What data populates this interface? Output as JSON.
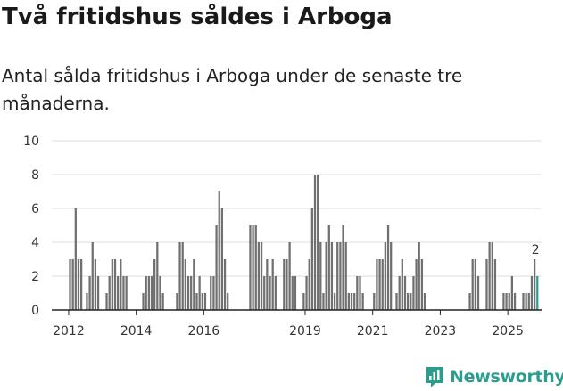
{
  "header": {
    "title": "Två fritidshus såldes i Arboga",
    "subtitle": "Antal sålda fritidshus i Arboga under de senaste tre månaderna."
  },
  "brand": {
    "name": "Newsworthy",
    "color": "#2a9d8f"
  },
  "colors": {
    "bar": "#707070",
    "highlight": "#2a9d8f",
    "grid": "#dddddd",
    "axis": "#222222"
  },
  "chart_data": {
    "type": "bar",
    "title": "Två fritidshus såldes i Arboga",
    "subtitle": "Antal sålda fritidshus i Arboga under de senaste tre månaderna.",
    "xlabel": "",
    "ylabel": "",
    "ylim": [
      0,
      10
    ],
    "yticks": [
      0,
      2,
      4,
      6,
      8,
      10
    ],
    "grid": true,
    "x_domain": [
      "2011-07",
      "2026-01"
    ],
    "xticks": [
      {
        "month": "2012-01",
        "label": "2012"
      },
      {
        "month": "2014-01",
        "label": "2014"
      },
      {
        "month": "2016-01",
        "label": "2016"
      },
      {
        "month": "2019-01",
        "label": "2019"
      },
      {
        "month": "2021-01",
        "label": "2021"
      },
      {
        "month": "2023-01",
        "label": "2023"
      },
      {
        "month": "2025-01",
        "label": "2025"
      }
    ],
    "highlight": {
      "month": "2025-11",
      "value": 2,
      "label": "2"
    },
    "series": [
      {
        "values": [
          {
            "month": "2012-01",
            "value": 3
          },
          {
            "month": "2012-02",
            "value": 3
          },
          {
            "month": "2012-03",
            "value": 6
          },
          {
            "month": "2012-04",
            "value": 3
          },
          {
            "month": "2012-05",
            "value": 3
          },
          {
            "month": "2012-07",
            "value": 1
          },
          {
            "month": "2012-08",
            "value": 2
          },
          {
            "month": "2012-09",
            "value": 4
          },
          {
            "month": "2012-10",
            "value": 3
          },
          {
            "month": "2012-11",
            "value": 2
          },
          {
            "month": "2013-02",
            "value": 1
          },
          {
            "month": "2013-03",
            "value": 2
          },
          {
            "month": "2013-04",
            "value": 3
          },
          {
            "month": "2013-05",
            "value": 3
          },
          {
            "month": "2013-06",
            "value": 2
          },
          {
            "month": "2013-07",
            "value": 3
          },
          {
            "month": "2013-08",
            "value": 2
          },
          {
            "month": "2013-09",
            "value": 2
          },
          {
            "month": "2014-03",
            "value": 1
          },
          {
            "month": "2014-04",
            "value": 2
          },
          {
            "month": "2014-05",
            "value": 2
          },
          {
            "month": "2014-06",
            "value": 2
          },
          {
            "month": "2014-07",
            "value": 3
          },
          {
            "month": "2014-08",
            "value": 4
          },
          {
            "month": "2014-09",
            "value": 2
          },
          {
            "month": "2014-10",
            "value": 1
          },
          {
            "month": "2015-03",
            "value": 1
          },
          {
            "month": "2015-04",
            "value": 4
          },
          {
            "month": "2015-05",
            "value": 4
          },
          {
            "month": "2015-06",
            "value": 3
          },
          {
            "month": "2015-07",
            "value": 2
          },
          {
            "month": "2015-08",
            "value": 2
          },
          {
            "month": "2015-09",
            "value": 3
          },
          {
            "month": "2015-10",
            "value": 1
          },
          {
            "month": "2015-11",
            "value": 2
          },
          {
            "month": "2015-12",
            "value": 1
          },
          {
            "month": "2016-01",
            "value": 1
          },
          {
            "month": "2016-03",
            "value": 2
          },
          {
            "month": "2016-04",
            "value": 2
          },
          {
            "month": "2016-05",
            "value": 5
          },
          {
            "month": "2016-06",
            "value": 7
          },
          {
            "month": "2016-07",
            "value": 6
          },
          {
            "month": "2016-08",
            "value": 3
          },
          {
            "month": "2016-09",
            "value": 1
          },
          {
            "month": "2017-05",
            "value": 5
          },
          {
            "month": "2017-06",
            "value": 5
          },
          {
            "month": "2017-07",
            "value": 5
          },
          {
            "month": "2017-08",
            "value": 4
          },
          {
            "month": "2017-09",
            "value": 4
          },
          {
            "month": "2017-10",
            "value": 2
          },
          {
            "month": "2017-11",
            "value": 3
          },
          {
            "month": "2017-12",
            "value": 2
          },
          {
            "month": "2018-01",
            "value": 3
          },
          {
            "month": "2018-02",
            "value": 2
          },
          {
            "month": "2018-05",
            "value": 3
          },
          {
            "month": "2018-06",
            "value": 3
          },
          {
            "month": "2018-07",
            "value": 4
          },
          {
            "month": "2018-08",
            "value": 2
          },
          {
            "month": "2018-09",
            "value": 2
          },
          {
            "month": "2018-12",
            "value": 1
          },
          {
            "month": "2019-01",
            "value": 2
          },
          {
            "month": "2019-02",
            "value": 3
          },
          {
            "month": "2019-03",
            "value": 6
          },
          {
            "month": "2019-04",
            "value": 8
          },
          {
            "month": "2019-05",
            "value": 8
          },
          {
            "month": "2019-06",
            "value": 4
          },
          {
            "month": "2019-07",
            "value": 1
          },
          {
            "month": "2019-08",
            "value": 4
          },
          {
            "month": "2019-09",
            "value": 5
          },
          {
            "month": "2019-10",
            "value": 4
          },
          {
            "month": "2019-11",
            "value": 1
          },
          {
            "month": "2019-12",
            "value": 4
          },
          {
            "month": "2020-01",
            "value": 4
          },
          {
            "month": "2020-02",
            "value": 5
          },
          {
            "month": "2020-03",
            "value": 4
          },
          {
            "month": "2020-04",
            "value": 1
          },
          {
            "month": "2020-05",
            "value": 1
          },
          {
            "month": "2020-06",
            "value": 1
          },
          {
            "month": "2020-07",
            "value": 2
          },
          {
            "month": "2020-08",
            "value": 2
          },
          {
            "month": "2020-09",
            "value": 1
          },
          {
            "month": "2021-01",
            "value": 1
          },
          {
            "month": "2021-02",
            "value": 3
          },
          {
            "month": "2021-03",
            "value": 3
          },
          {
            "month": "2021-04",
            "value": 3
          },
          {
            "month": "2021-05",
            "value": 4
          },
          {
            "month": "2021-06",
            "value": 5
          },
          {
            "month": "2021-07",
            "value": 4
          },
          {
            "month": "2021-09",
            "value": 1
          },
          {
            "month": "2021-10",
            "value": 2
          },
          {
            "month": "2021-11",
            "value": 3
          },
          {
            "month": "2021-12",
            "value": 2
          },
          {
            "month": "2022-01",
            "value": 1
          },
          {
            "month": "2022-02",
            "value": 1
          },
          {
            "month": "2022-03",
            "value": 2
          },
          {
            "month": "2022-04",
            "value": 3
          },
          {
            "month": "2022-05",
            "value": 4
          },
          {
            "month": "2022-06",
            "value": 3
          },
          {
            "month": "2022-07",
            "value": 1
          },
          {
            "month": "2023-11",
            "value": 1
          },
          {
            "month": "2023-12",
            "value": 3
          },
          {
            "month": "2024-01",
            "value": 3
          },
          {
            "month": "2024-02",
            "value": 2
          },
          {
            "month": "2024-05",
            "value": 3
          },
          {
            "month": "2024-06",
            "value": 4
          },
          {
            "month": "2024-07",
            "value": 4
          },
          {
            "month": "2024-08",
            "value": 3
          },
          {
            "month": "2024-11",
            "value": 1
          },
          {
            "month": "2024-12",
            "value": 1
          },
          {
            "month": "2025-01",
            "value": 1
          },
          {
            "month": "2025-02",
            "value": 2
          },
          {
            "month": "2025-03",
            "value": 1
          },
          {
            "month": "2025-06",
            "value": 1
          },
          {
            "month": "2025-07",
            "value": 1
          },
          {
            "month": "2025-08",
            "value": 1
          },
          {
            "month": "2025-09",
            "value": 2
          },
          {
            "month": "2025-10",
            "value": 3
          },
          {
            "month": "2025-11",
            "value": 2
          }
        ]
      }
    ]
  }
}
